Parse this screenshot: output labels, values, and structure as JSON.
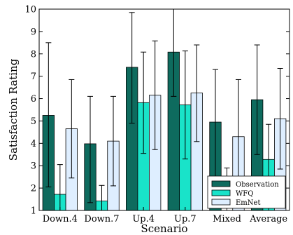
{
  "chart_data": {
    "type": "bar",
    "xlabel": "Scenario",
    "ylabel": "Satisfaction Rating",
    "ylim": [
      1,
      10
    ],
    "yticks": [
      "1",
      "2",
      "3",
      "4",
      "5",
      "6",
      "7",
      "8",
      "9",
      "10"
    ],
    "categories": [
      "Down.4",
      "Down.7",
      "Up.4",
      "Up.7",
      "Mixed",
      "Average"
    ],
    "error_bars": true,
    "legend_position": "bottom-right",
    "series": [
      {
        "name": "Observation",
        "color": "#0e6b5e",
        "values": [
          5.25,
          3.98,
          7.4,
          8.08,
          4.95,
          5.95
        ],
        "err_low": [
          2.05,
          1.35,
          4.9,
          6.1,
          2.2,
          3.5
        ],
        "err_high": [
          8.5,
          6.1,
          9.85,
          10.0,
          7.3,
          8.4
        ]
      },
      {
        "name": "WFQ",
        "color": "#19e3c9",
        "values": [
          1.72,
          1.42,
          5.82,
          5.72,
          1.0,
          3.28
        ],
        "err_low": [
          1.0,
          1.0,
          3.55,
          3.3,
          1.0,
          1.65
        ],
        "err_high": [
          3.05,
          2.12,
          8.08,
          8.13,
          2.9,
          4.85
        ]
      },
      {
        "name": "EmNet",
        "color": "#deeeff",
        "values": [
          4.65,
          4.1,
          6.15,
          6.25,
          4.3,
          5.1
        ],
        "err_low": [
          2.45,
          2.1,
          3.72,
          4.08,
          1.85,
          2.85
        ],
        "err_high": [
          6.85,
          6.1,
          8.58,
          8.4,
          6.85,
          7.35
        ]
      }
    ]
  }
}
